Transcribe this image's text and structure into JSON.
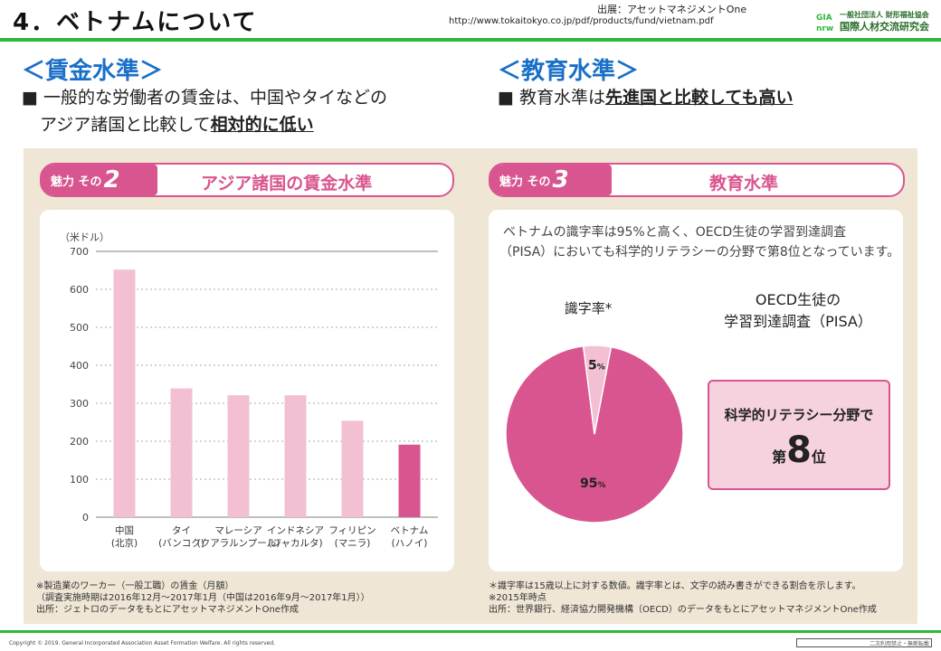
{
  "header": {
    "title": "4．ベトナムについて",
    "source_line1": "出展：アセットマネジメントOne",
    "source_line2": "http://www.tokaitokyo.co.jp/pdf/products/fund/vietnam.pdf",
    "logo_mark": "GIA nrw",
    "logo_line1": "一般社団法人 財形福祉協会",
    "logo_line2": "国際人材交流研究会"
  },
  "left": {
    "heading": "＜賃金水準＞",
    "bullet_line1": "■ 一般的な労働者の賃金は、中国やタイなどの",
    "bullet_line2_prefix": "アジア諸国と比較して",
    "bullet_line2_emph": "相対的に低い"
  },
  "right": {
    "heading": "＜教育水準＞",
    "bullet_prefix": "■ 教育水準は",
    "bullet_emph": "先進国と比較しても高い"
  },
  "card_wage": {
    "badge_text": "魅力 その",
    "badge_num": "2",
    "title": "アジア諸国の賃金水準",
    "notes": [
      "※製造業のワーカー（一般工職）の賃金（月額）",
      "（調査実施時期は2016年12月〜2017年1月（中国は2016年9月〜2017年1月））",
      "出所：ジェトロのデータをもとにアセットマネジメントOne作成"
    ]
  },
  "card_edu": {
    "badge_text": "魅力 その",
    "badge_num": "3",
    "title": "教育水準",
    "text_line1": "ベトナムの識字率は95%と高く、OECD生徒の学習到達調査",
    "text_line2": "（PISA）においても科学的リテラシーの分野で第8位となっています。",
    "pie_title": "識字率*",
    "oecd_line1": "OECD生徒の",
    "oecd_line2": "学習到達調査（PISA）",
    "rank_line1": "科学的リテラシー分野で",
    "rank_prefix": "第",
    "rank_num": "8",
    "rank_suffix": "位",
    "notes": [
      "＊識字率は15歳以上に対する数値。識字率とは、文字の読み書きができる割合を示します。",
      "※2015年時点",
      "出所：世界銀行、経済協力開発機構（OECD）のデータをもとにアセットマネジメントOne作成"
    ]
  },
  "chart_data": [
    {
      "type": "bar",
      "unit_label": "（米ドル）",
      "categories": [
        [
          "中国",
          "(北京)"
        ],
        [
          "タイ",
          "(バンコク)"
        ],
        [
          "マレーシア",
          "(クアラルンプール)"
        ],
        [
          "インドネシア",
          "(ジャカルタ)"
        ],
        [
          "フィリピン",
          "(マニラ)"
        ],
        [
          "ベトナム",
          "(ハノイ)"
        ]
      ],
      "values": [
        652,
        339,
        321,
        321,
        254,
        191
      ],
      "highlight_index": 5,
      "bar_color": "#f2bfd3",
      "highlight_color": "#d9558f",
      "ylim": [
        0,
        700
      ],
      "yticks": [
        0,
        100,
        200,
        300,
        400,
        500,
        600,
        700
      ],
      "grid": true
    },
    {
      "type": "pie",
      "slices": [
        {
          "label": "95",
          "unit": "%",
          "value": 95,
          "color": "#d9558f"
        },
        {
          "label": "5",
          "unit": "%",
          "value": 5,
          "color": "#f2bfd3"
        }
      ]
    }
  ],
  "footer": {
    "copyright": "Copyright © 2019. General Incorporated Association Asset Formation Welfare. All rights reserved.",
    "box_text": "二次利用禁止・無断転載"
  }
}
